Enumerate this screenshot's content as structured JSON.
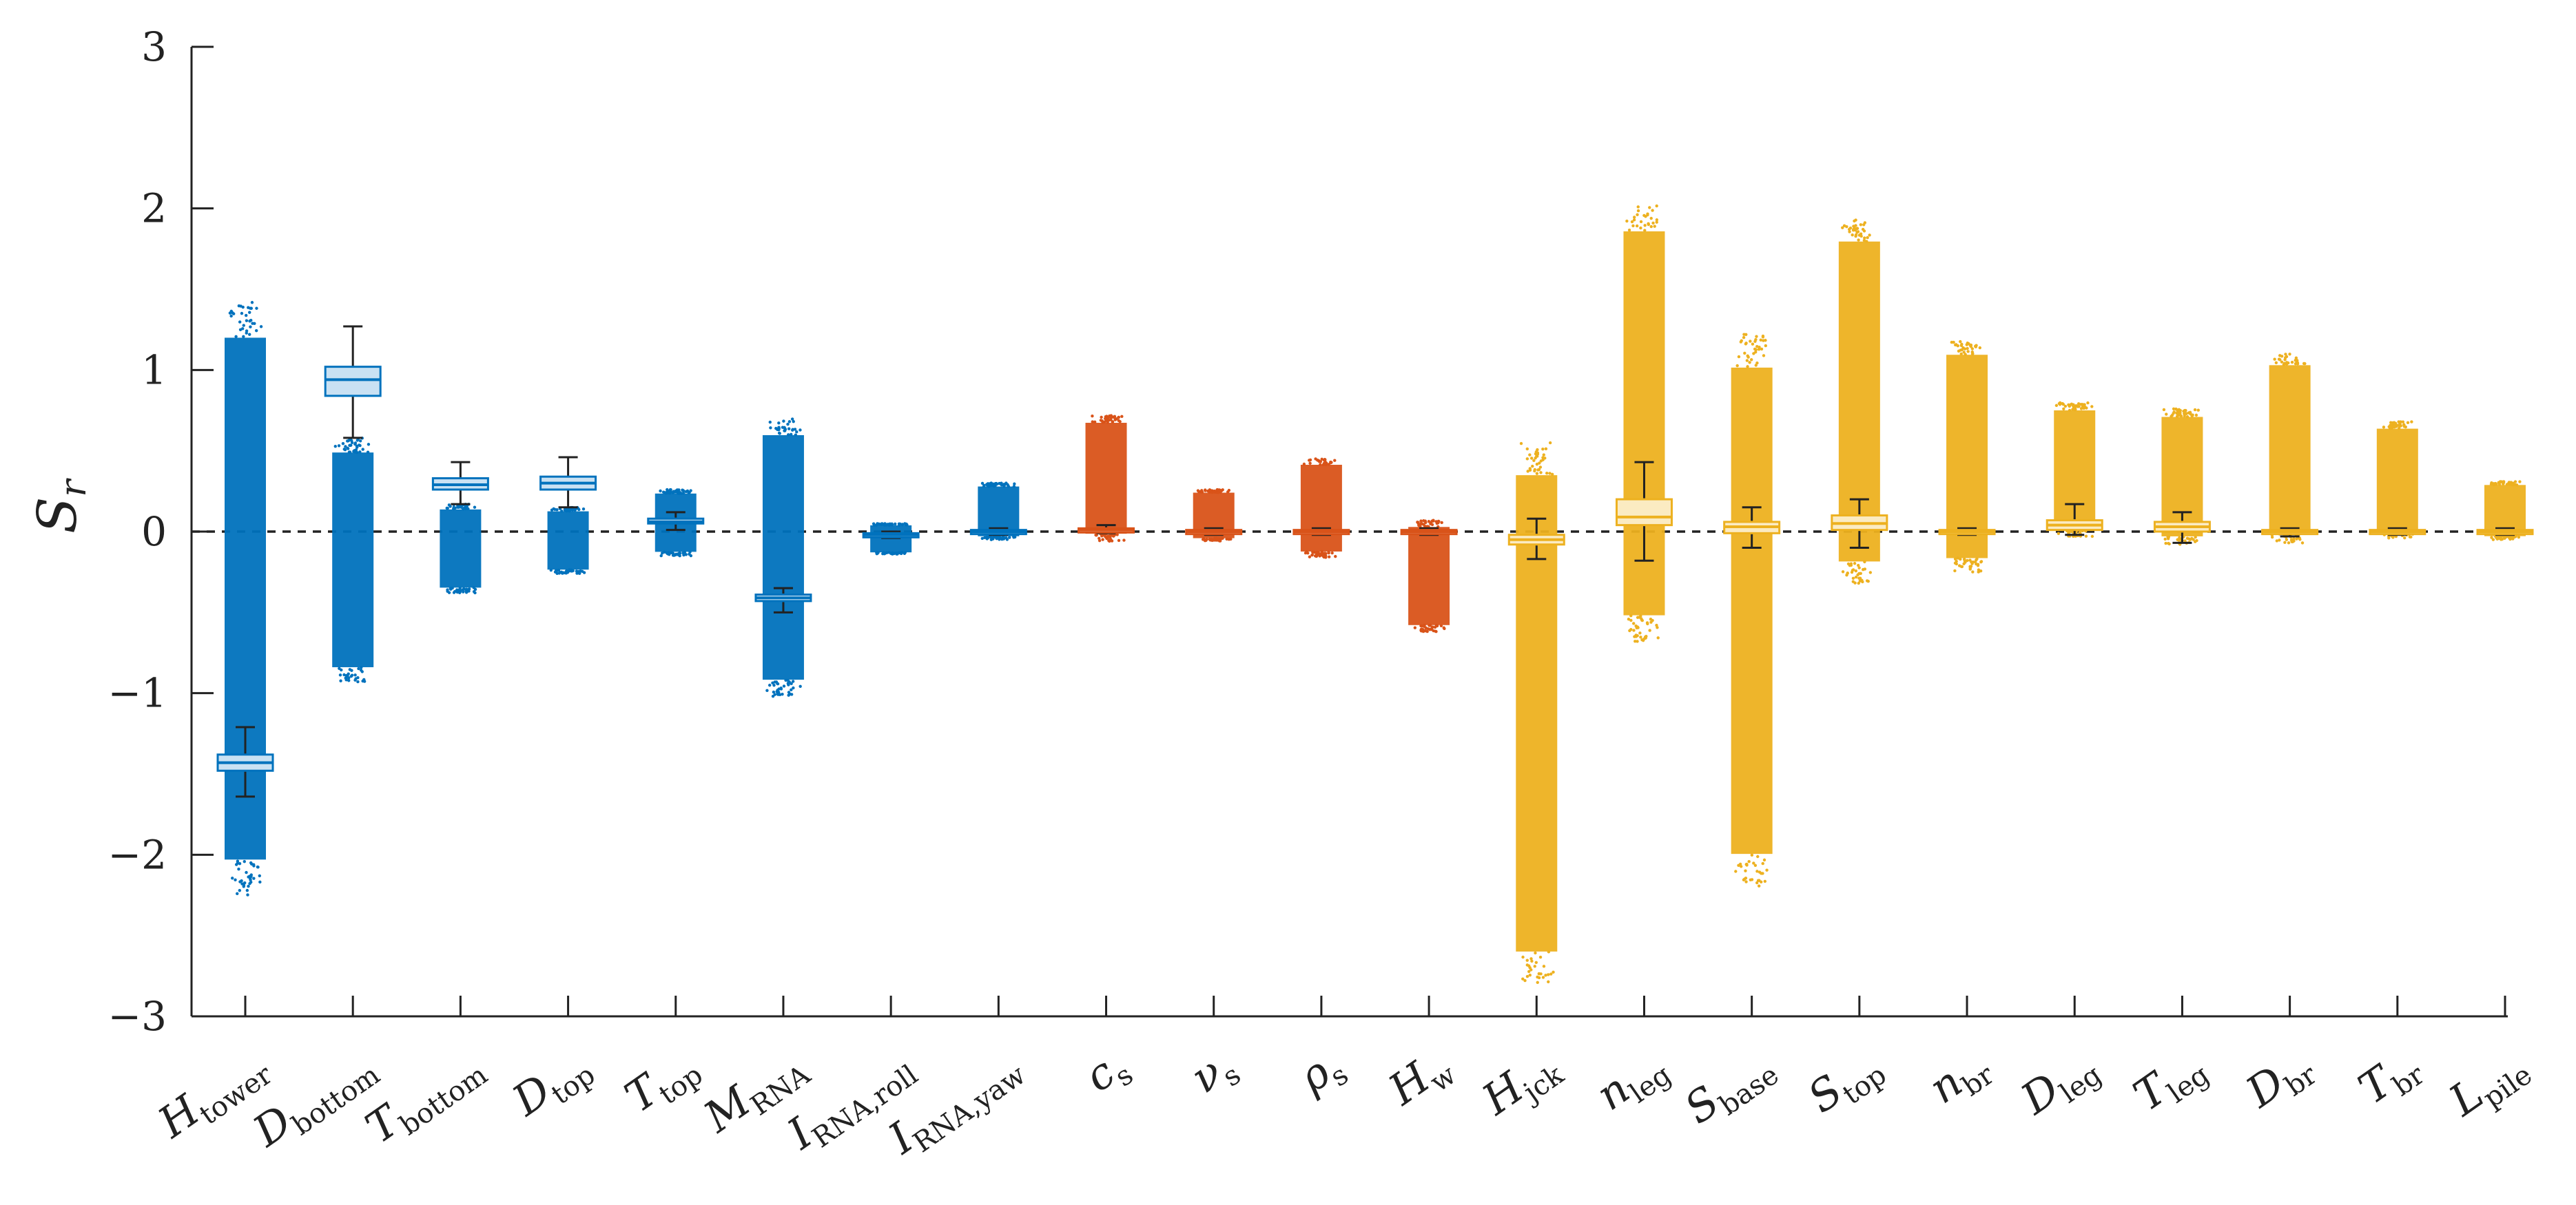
{
  "colors": {
    "group1": "#0072BD",
    "group1_box": "#C9E1F3",
    "group2": "#D95319",
    "group2_box": "#F6D2C2",
    "group3": "#EDB120",
    "group3_box": "#FBEBC2",
    "axis": "#222222"
  },
  "chart_data": {
    "type": "box",
    "title": "",
    "xlabel": "",
    "ylabel": "S",
    "ylabel_sub": "r",
    "ylim": [
      -3,
      3
    ],
    "yticks": [
      "−3",
      "−2",
      "−1",
      "0",
      "1",
      "2",
      "3"
    ],
    "reference_line": 0,
    "categories": [
      {
        "main": "H",
        "sub": "tower",
        "group": 1,
        "q1": -1.48,
        "median": -1.43,
        "q3": -1.38,
        "wlo": -1.64,
        "whi": -1.21,
        "dot_lo": -2.25,
        "dot_hi": 1.42
      },
      {
        "main": "D",
        "sub": "bottom",
        "group": 1,
        "q1": 0.84,
        "median": 0.94,
        "q3": 1.02,
        "wlo": 0.58,
        "whi": 1.27,
        "dot_lo": -0.93,
        "dot_hi": 0.58
      },
      {
        "main": "T",
        "sub": "bottom",
        "group": 1,
        "q1": 0.26,
        "median": 0.29,
        "q3": 0.33,
        "wlo": 0.17,
        "whi": 0.43,
        "dot_lo": -0.38,
        "dot_hi": 0.17
      },
      {
        "main": "D",
        "sub": "top",
        "group": 1,
        "q1": 0.26,
        "median": 0.3,
        "q3": 0.34,
        "wlo": 0.15,
        "whi": 0.46,
        "dot_lo": -0.26,
        "dot_hi": 0.15
      },
      {
        "main": "T",
        "sub": "top",
        "group": 1,
        "q1": 0.05,
        "median": 0.06,
        "q3": 0.08,
        "wlo": 0.01,
        "whi": 0.12,
        "dot_lo": -0.15,
        "dot_hi": 0.26
      },
      {
        "main": "M",
        "sub": "RNA",
        "group": 1,
        "q1": -0.43,
        "median": -0.41,
        "q3": -0.39,
        "wlo": -0.5,
        "whi": -0.35,
        "dot_lo": -1.02,
        "dot_hi": 0.7
      },
      {
        "main": "I",
        "sub": "RNA,roll",
        "group": 1,
        "q1": -0.03,
        "median": -0.02,
        "q3": -0.01,
        "wlo": -0.04,
        "whi": 0.0,
        "dot_lo": -0.14,
        "dot_hi": 0.05
      },
      {
        "main": "I",
        "sub": "RNA,yaw",
        "group": 1,
        "q1": -0.01,
        "median": 0.0,
        "q3": 0.01,
        "wlo": -0.02,
        "whi": 0.02,
        "dot_lo": -0.05,
        "dot_hi": 0.3
      },
      {
        "main": "c",
        "sub": "s",
        "group": 2,
        "q1": 0.0,
        "median": 0.01,
        "q3": 0.02,
        "wlo": -0.01,
        "whi": 0.04,
        "dot_lo": -0.06,
        "dot_hi": 0.72
      },
      {
        "main": "ν",
        "sub": "s",
        "group": 2,
        "q1": -0.01,
        "median": 0.0,
        "q3": 0.01,
        "wlo": -0.02,
        "whi": 0.02,
        "dot_lo": -0.06,
        "dot_hi": 0.26
      },
      {
        "main": "ρ",
        "sub": "s",
        "group": 2,
        "q1": -0.01,
        "median": 0.0,
        "q3": 0.01,
        "wlo": -0.02,
        "whi": 0.02,
        "dot_lo": -0.16,
        "dot_hi": 0.45
      },
      {
        "main": "H",
        "sub": "w",
        "group": 2,
        "q1": -0.01,
        "median": 0.0,
        "q3": 0.01,
        "wlo": -0.02,
        "whi": 0.02,
        "dot_lo": -0.62,
        "dot_hi": 0.07
      },
      {
        "main": "H",
        "sub": "jck",
        "group": 3,
        "q1": -0.08,
        "median": -0.05,
        "q3": -0.02,
        "wlo": -0.17,
        "whi": 0.08,
        "dot_lo": -2.8,
        "dot_hi": 0.55
      },
      {
        "main": "n",
        "sub": "leg",
        "group": 3,
        "q1": 0.04,
        "median": 0.09,
        "q3": 0.2,
        "wlo": -0.18,
        "whi": 0.43,
        "dot_lo": -0.68,
        "dot_hi": 2.02
      },
      {
        "main": "S",
        "sub": "base",
        "group": 3,
        "q1": -0.01,
        "median": 0.03,
        "q3": 0.06,
        "wlo": -0.1,
        "whi": 0.15,
        "dot_lo": -2.2,
        "dot_hi": 1.22
      },
      {
        "main": "S",
        "sub": "top",
        "group": 3,
        "q1": 0.01,
        "median": 0.05,
        "q3": 0.1,
        "wlo": -0.1,
        "whi": 0.2,
        "dot_lo": -0.32,
        "dot_hi": 1.93
      },
      {
        "main": "n",
        "sub": "br",
        "group": 3,
        "q1": -0.01,
        "median": 0.0,
        "q3": 0.01,
        "wlo": -0.02,
        "whi": 0.02,
        "dot_lo": -0.25,
        "dot_hi": 1.18
      },
      {
        "main": "D",
        "sub": "leg",
        "group": 3,
        "q1": 0.01,
        "median": 0.04,
        "q3": 0.07,
        "wlo": -0.02,
        "whi": 0.17,
        "dot_lo": -0.03,
        "dot_hi": 0.8
      },
      {
        "main": "T",
        "sub": "leg",
        "group": 3,
        "q1": 0.0,
        "median": 0.03,
        "q3": 0.06,
        "wlo": -0.07,
        "whi": 0.12,
        "dot_lo": -0.08,
        "dot_hi": 0.76
      },
      {
        "main": "D",
        "sub": "br",
        "group": 3,
        "q1": -0.01,
        "median": 0.0,
        "q3": 0.01,
        "wlo": -0.03,
        "whi": 0.02,
        "dot_lo": -0.07,
        "dot_hi": 1.1
      },
      {
        "main": "T",
        "sub": "br",
        "group": 3,
        "q1": -0.01,
        "median": 0.0,
        "q3": 0.01,
        "wlo": -0.02,
        "whi": 0.02,
        "dot_lo": -0.04,
        "dot_hi": 0.68
      },
      {
        "main": "L",
        "sub": "pile",
        "group": 3,
        "q1": -0.01,
        "median": 0.0,
        "q3": 0.01,
        "wlo": -0.02,
        "whi": 0.02,
        "dot_lo": -0.05,
        "dot_hi": 0.31
      }
    ]
  }
}
